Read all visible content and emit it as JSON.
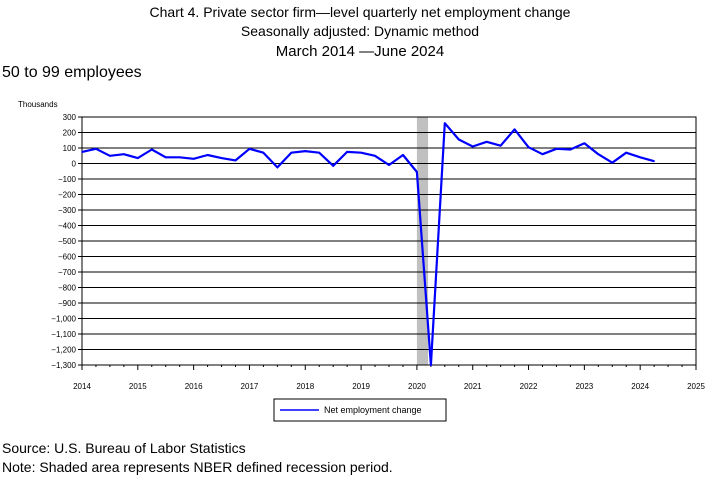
{
  "chart_data": {
    "type": "line",
    "title_lines": [
      "Chart 4. Private sector firm—level quarterly net employment change",
      "Seasonally adjusted: Dynamic method",
      "March 2014  —June 2024"
    ],
    "subtitle": "50 to 99 employees",
    "ylabel": "Thousands",
    "xlabel": "",
    "ylim": [
      -1300,
      300
    ],
    "yticks": [
      300,
      200,
      100,
      0,
      -100,
      -200,
      -300,
      -400,
      -500,
      -600,
      -700,
      -800,
      -900,
      -1000,
      -1100,
      -1200,
      -1300
    ],
    "ytick_labels": [
      "300",
      "200",
      "100",
      "0",
      "−100",
      "−200",
      "−300",
      "−400",
      "−500",
      "−600",
      "−700",
      "−800",
      "−900",
      "−1,000",
      "−1,100",
      "−1,200",
      "−1,300"
    ],
    "xlim": [
      2014,
      2025
    ],
    "xticks": [
      "2014",
      "2015",
      "2016",
      "2017",
      "2018",
      "2019",
      "2020",
      "2021",
      "2022",
      "2023",
      "2024",
      "2025"
    ],
    "recession": {
      "start": 2020.0,
      "end": 2020.2
    },
    "grid": true,
    "legend_position": "bottom-center",
    "series": [
      {
        "name": "Net employment change",
        "color": "#0000ff",
        "x": [
          2014.0,
          2014.25,
          2014.5,
          2014.75,
          2015.0,
          2015.25,
          2015.5,
          2015.75,
          2016.0,
          2016.25,
          2016.5,
          2016.75,
          2017.0,
          2017.25,
          2017.5,
          2017.75,
          2018.0,
          2018.25,
          2018.5,
          2018.75,
          2019.0,
          2019.25,
          2019.5,
          2019.75,
          2020.0,
          2020.25,
          2020.5,
          2020.75,
          2021.0,
          2021.25,
          2021.5,
          2021.75,
          2022.0,
          2022.25,
          2022.5,
          2022.75,
          2023.0,
          2023.25,
          2023.5,
          2023.75,
          2024.0,
          2024.25
        ],
        "values": [
          75,
          95,
          50,
          60,
          35,
          90,
          40,
          40,
          30,
          55,
          35,
          20,
          95,
          70,
          -25,
          70,
          80,
          70,
          -15,
          75,
          70,
          50,
          -10,
          55,
          -55,
          -1300,
          260,
          155,
          110,
          140,
          115,
          220,
          105,
          60,
          95,
          90,
          130,
          60,
          5,
          70,
          40,
          15
        ]
      }
    ]
  },
  "footer": {
    "source": "Source: U.S. Bureau of Labor Statistics",
    "note": "Note: Shaded area represents NBER defined recession period."
  }
}
